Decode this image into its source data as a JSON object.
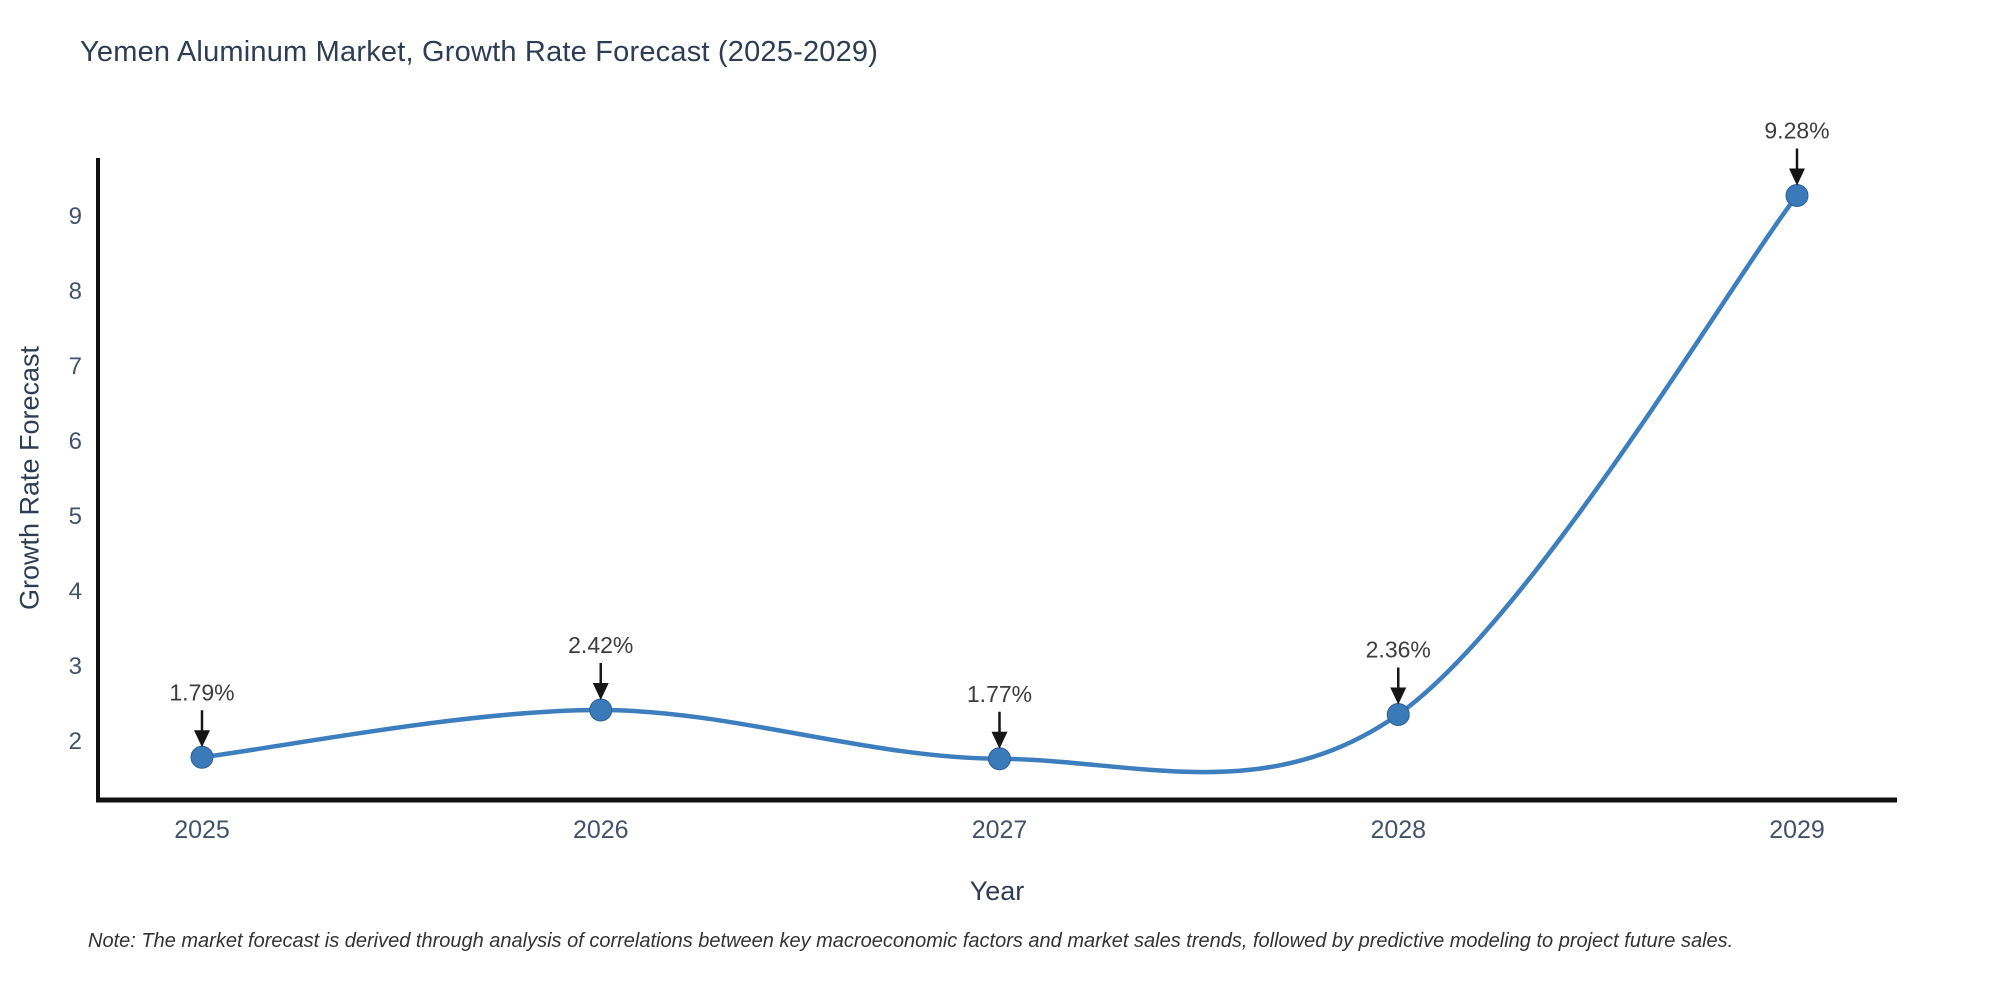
{
  "title": "Yemen Aluminum Market, Growth Rate Forecast (2025-2029)",
  "note": "Note: The market forecast is derived through analysis of correlations between key macroeconomic factors and market sales trends, followed by predictive modeling to project future sales.",
  "colors": {
    "background": "#ffffff",
    "title_text": "#2e3d54",
    "axis_line": "#111111",
    "tick_label": "#42526b",
    "axis_title_text": "#2e3d54",
    "line": "#3d7ebf",
    "marker": "#3a7ab8",
    "marker_stroke": "#2d6194",
    "annotation_text": "#3d3d3d",
    "arrow": "#161616",
    "note_text": "#333333"
  },
  "chart_data": {
    "type": "line",
    "line_shape": "spline",
    "markers": true,
    "grid": false,
    "legend": "none",
    "title": "Yemen Aluminum Market, Growth Rate Forecast (2025-2029)",
    "xlabel": "Year",
    "ylabel": "Growth Rate Forecast",
    "categories": [
      "2025",
      "2026",
      "2027",
      "2028",
      "2029"
    ],
    "x": [
      2025,
      2026,
      2027,
      2028,
      2029
    ],
    "values": [
      1.79,
      2.42,
      1.77,
      2.36,
      9.28
    ],
    "point_labels": [
      "1.79%",
      "2.42%",
      "1.77%",
      "2.36%",
      "9.28%"
    ],
    "yticks": [
      2,
      3,
      4,
      5,
      6,
      7,
      8,
      9
    ],
    "ylim": [
      1.22,
      9.78
    ],
    "annotation_style": "text above point with downward black arrow"
  }
}
